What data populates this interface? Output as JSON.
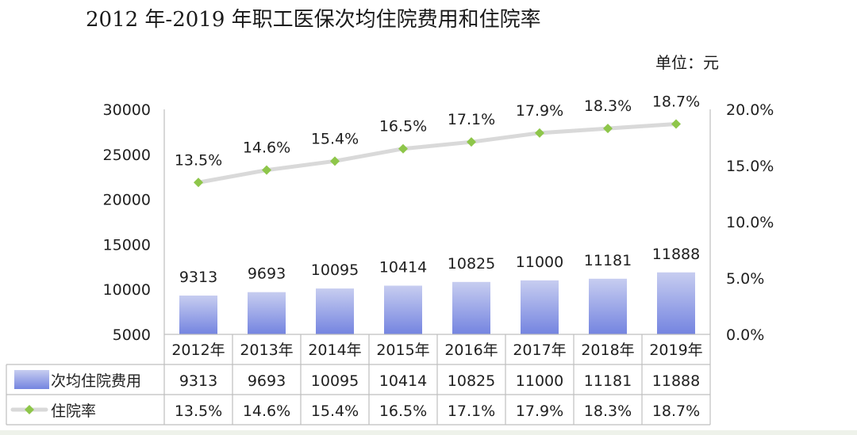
{
  "title": "2012 年-2019 年职工医保次均住院费用和住院率",
  "unit_label": "单位：元",
  "legend": {
    "bar_series": "次均住院费用",
    "line_series": "住院率"
  },
  "colors": {
    "bar_top": "#c7cdf0",
    "bar_bottom": "#7484e0",
    "line": "#d9d9d9",
    "marker": "#8ec64a",
    "axis": "#bfbfbf"
  },
  "chart_data": {
    "type": "bar",
    "title": "2012 年-2019 年职工医保次均住院费用和住院率",
    "categories": [
      "2012年",
      "2013年",
      "2014年",
      "2015年",
      "2016年",
      "2017年",
      "2018年",
      "2019年"
    ],
    "series": [
      {
        "name": "次均住院费用",
        "type": "bar",
        "axis": "left",
        "values": [
          9313,
          9693,
          10095,
          10414,
          10825,
          11000,
          11181,
          11888
        ],
        "labels": [
          "9313",
          "9693",
          "10095",
          "10414",
          "10825",
          "11000",
          "11181",
          "11888"
        ]
      },
      {
        "name": "住院率",
        "type": "line",
        "axis": "right",
        "values": [
          13.5,
          14.6,
          15.4,
          16.5,
          17.1,
          17.9,
          18.3,
          18.7
        ],
        "labels": [
          "13.5%",
          "14.6%",
          "15.4%",
          "16.5%",
          "17.1%",
          "17.9%",
          "18.3%",
          "18.7%"
        ]
      }
    ],
    "y_left": {
      "ylim": [
        5000,
        30000
      ],
      "ticks": [
        "30000",
        "25000",
        "20000",
        "15000",
        "10000",
        "5000"
      ]
    },
    "y_right": {
      "ylim": [
        0,
        20
      ],
      "ticks": [
        "20.0%",
        "15.0%",
        "10.0%",
        "5.0%",
        "0.0%"
      ]
    },
    "data_table": true,
    "grid": false
  }
}
